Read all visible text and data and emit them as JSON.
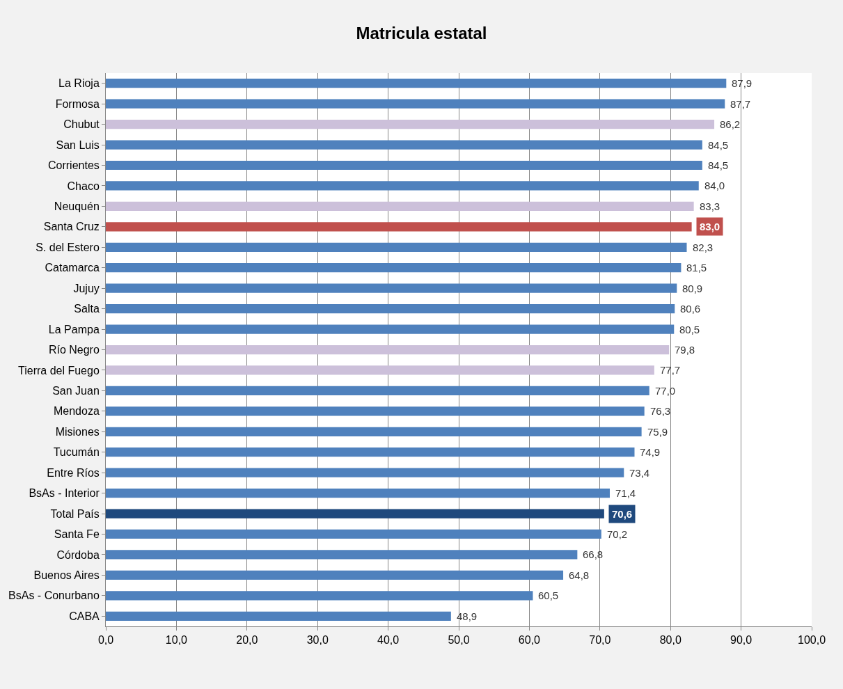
{
  "chart_data": {
    "type": "bar",
    "orientation": "horizontal",
    "title": "Matricula estatal",
    "categories": [
      "La Rioja",
      "Formosa",
      "Chubut",
      "San Luis",
      "Corrientes",
      "Chaco",
      "Neuquén",
      "Santa Cruz",
      "S. del Estero",
      "Catamarca",
      "Jujuy",
      "Salta",
      "La Pampa",
      "Río Negro",
      "Tierra del Fuego",
      "San Juan",
      "Mendoza",
      "Misiones",
      "Tucumán",
      "Entre Ríos",
      "BsAs - Interior",
      "Total País",
      "Santa Fe",
      "Córdoba",
      "Buenos Aires",
      "BsAs - Conurbano",
      "CABA"
    ],
    "values": [
      87.9,
      87.7,
      86.2,
      84.5,
      84.5,
      84.0,
      83.3,
      83.0,
      82.3,
      81.5,
      80.9,
      80.6,
      80.5,
      79.8,
      77.7,
      77.0,
      76.3,
      75.9,
      74.9,
      73.4,
      71.4,
      70.6,
      70.2,
      66.8,
      64.8,
      60.5,
      48.9
    ],
    "value_labels": [
      "87,9",
      "87,7",
      "86,2",
      "84,5",
      "84,5",
      "84,0",
      "83,3",
      "83,0",
      "82,3",
      "81,5",
      "80,9",
      "80,6",
      "80,5",
      "79,8",
      "77,7",
      "77,0",
      "76,3",
      "75,9",
      "74,9",
      "73,4",
      "71,4",
      "70,6",
      "70,2",
      "66,8",
      "64,8",
      "60,5",
      "48,9"
    ],
    "colors": [
      "#4f81bd",
      "#4f81bd",
      "#ccc0da",
      "#4f81bd",
      "#4f81bd",
      "#4f81bd",
      "#ccc0da",
      "#c0504d",
      "#4f81bd",
      "#4f81bd",
      "#4f81bd",
      "#4f81bd",
      "#4f81bd",
      "#ccc0da",
      "#ccc0da",
      "#4f81bd",
      "#4f81bd",
      "#4f81bd",
      "#4f81bd",
      "#4f81bd",
      "#4f81bd",
      "#1f497d",
      "#4f81bd",
      "#4f81bd",
      "#4f81bd",
      "#4f81bd",
      "#4f81bd"
    ],
    "xlim": [
      0,
      100
    ],
    "xticks": [
      {
        "value": 0,
        "label": "0,0"
      },
      {
        "value": 10,
        "label": "10,0"
      },
      {
        "value": 20,
        "label": "20,0"
      },
      {
        "value": 30,
        "label": "30,0"
      },
      {
        "value": 40,
        "label": "40,0"
      },
      {
        "value": 50,
        "label": "50,0"
      },
      {
        "value": 60,
        "label": "60,0"
      },
      {
        "value": 70,
        "label": "70,0"
      },
      {
        "value": 80,
        "label": "80,0"
      },
      {
        "value": 90,
        "label": "90,0"
      },
      {
        "value": 100,
        "label": "100,0"
      }
    ],
    "grid": "x",
    "legend": false
  }
}
